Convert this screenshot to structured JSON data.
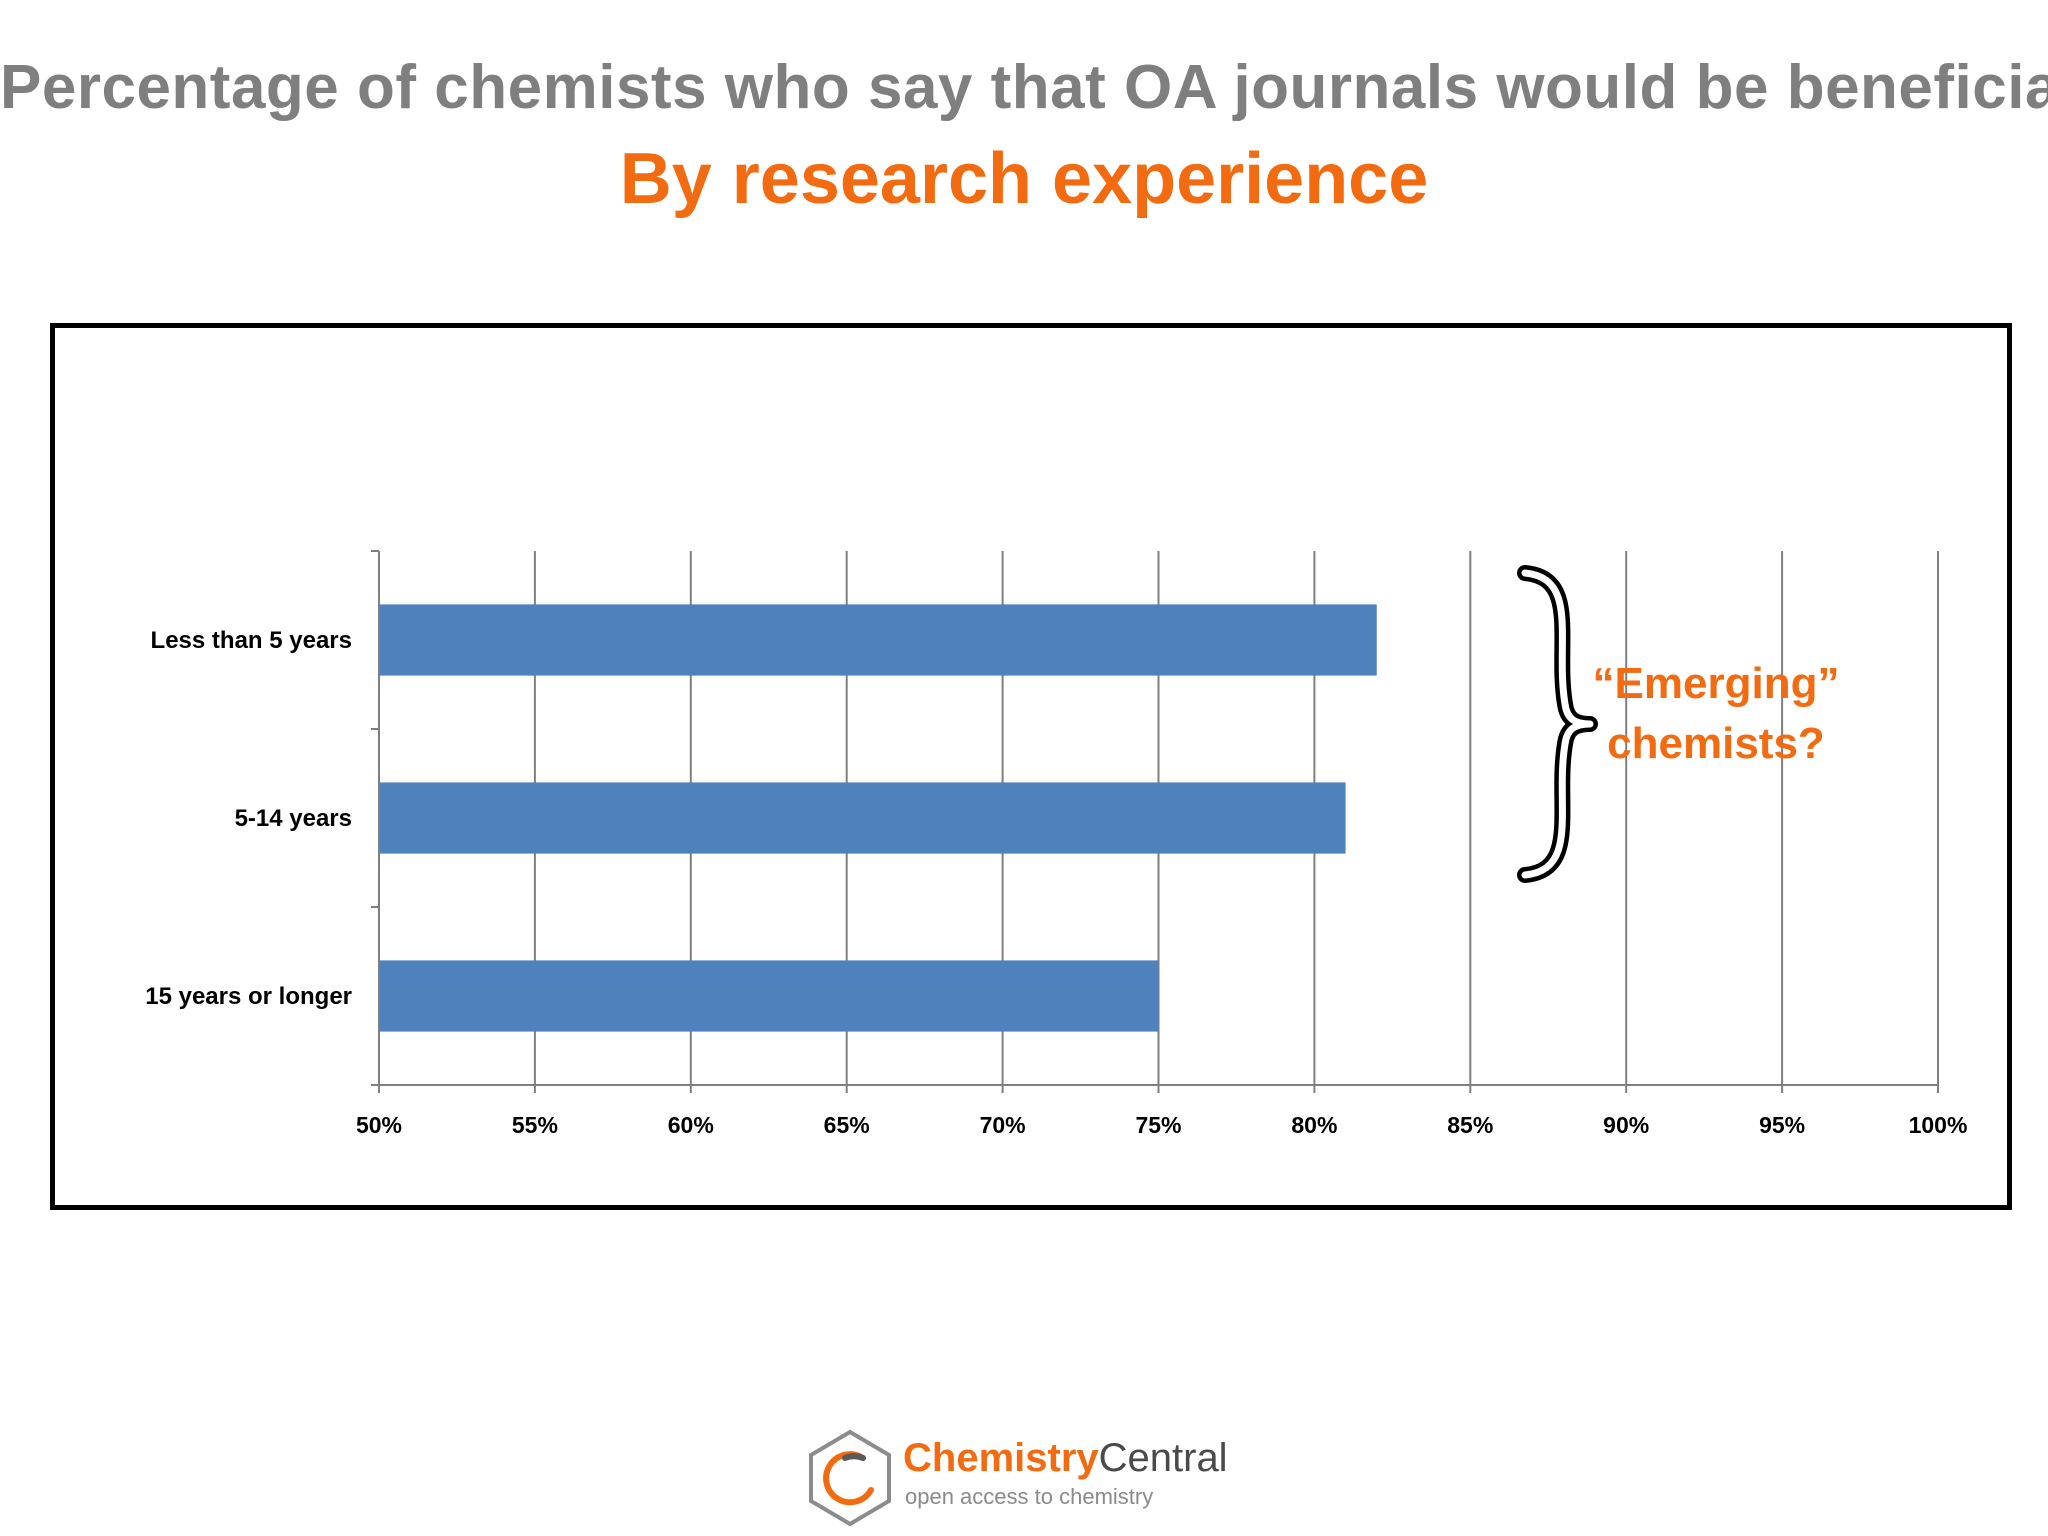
{
  "title": "Percentage of chemists who say that OA journals would be beneficial",
  "subtitle": "By research experience",
  "colors": {
    "title": "#7f7f7f",
    "accent": "#f26b10",
    "bar": "#4f81bd",
    "grid": "#7f7f7f",
    "frame": "#000000"
  },
  "chart_data": {
    "type": "bar",
    "orientation": "horizontal",
    "categories": [
      "Less than 5 years",
      "5-14 years",
      "15 years or longer"
    ],
    "values": [
      82,
      81,
      75
    ],
    "xlim": [
      50,
      100
    ],
    "xticks": [
      50,
      55,
      60,
      65,
      70,
      75,
      80,
      85,
      90,
      95,
      100
    ],
    "tick_labels": [
      "50%",
      "55%",
      "60%",
      "65%",
      "70%",
      "75%",
      "80%",
      "85%",
      "90%",
      "95%",
      "100%"
    ],
    "grid": true,
    "legend": "none",
    "annotation": {
      "lines": [
        "“Emerging”",
        "chemists?"
      ],
      "brace_icon": "curly-brace-icon",
      "spans_categories": [
        "Less than 5 years",
        "5-14 years"
      ]
    }
  },
  "logo": {
    "name_part1": "Chemistry",
    "name_part2": "Central",
    "tagline": "open access to chemistry",
    "icon": "hexagon-ring-logo-icon"
  }
}
